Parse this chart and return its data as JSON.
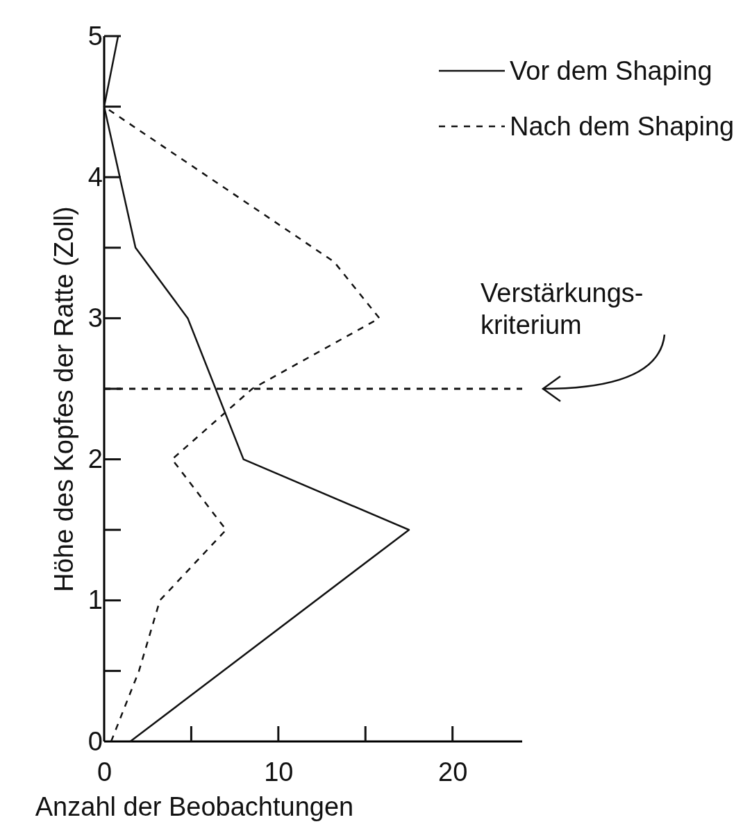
{
  "chart_data": {
    "type": "line",
    "xlabel": "Anzahl der Beobachtungen",
    "ylabel": "Höhe des Kopfes der Ratte (Zoll)",
    "xlim": [
      0,
      24
    ],
    "xticks": [
      0,
      10,
      20
    ],
    "ylim": [
      0,
      5
    ],
    "yticks": [
      0,
      1,
      2,
      3,
      4,
      5
    ],
    "legend": "top right",
    "grid": false,
    "series": [
      {
        "name": "Vor dem Shaping",
        "color": "#111111",
        "line_style": "solid",
        "x": [
          1.5,
          17.5,
          8,
          4.8,
          1.8,
          0,
          0.8
        ],
        "values": [
          0,
          1.5,
          2,
          3,
          3.5,
          4.5,
          5
        ]
      },
      {
        "name": "Nach dem Shaping",
        "color": "#111111",
        "line_style": "dashed",
        "x": [
          0.4,
          2,
          3.2,
          7,
          3.9,
          8.5,
          15.8,
          13.2,
          0
        ],
        "values": [
          0,
          0.5,
          1,
          1.5,
          2,
          2.5,
          3,
          3.4,
          4.5
        ]
      }
    ],
    "ref_lines": [
      {
        "axis": "y",
        "value": 2.5,
        "label": "Verstärkungs-\nkriterium",
        "line_style": "dashed",
        "color": "#111111"
      }
    ]
  }
}
